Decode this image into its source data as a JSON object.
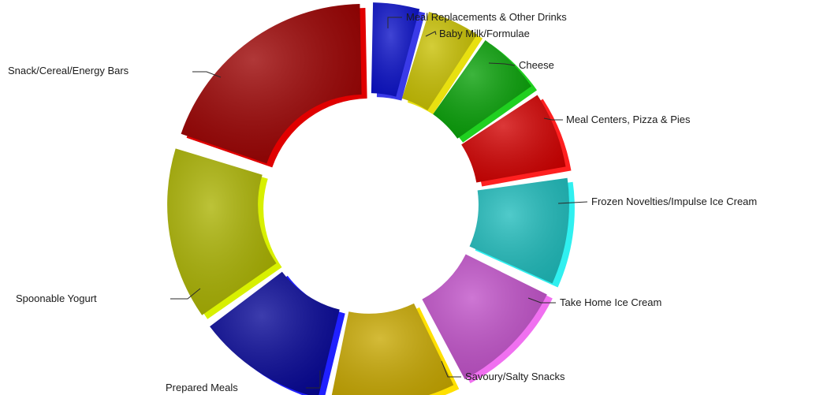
{
  "chart_data": {
    "type": "pie",
    "variant": "exploded-donut-3d",
    "categories": [
      "Meal Replacements & Other Drinks",
      "Baby Milk/Formulae",
      "Cheese",
      "Meal Centers, Pizza &  Pies",
      "Frozen Novelties/Impulse Ice Cream",
      "Take Home Ice Cream",
      "Savoury/Salty Snacks",
      "Prepared Meals",
      "Spoonable Yogurt",
      "Snack/Cereal/Energy Bars"
    ],
    "values": [
      4.5,
      5.0,
      6.0,
      7.0,
      9.5,
      10.5,
      11.0,
      11.5,
      15.0,
      20.0
    ],
    "colors": [
      "#0a10c8",
      "#c8c000",
      "#06a006",
      "#d20000",
      "#1fbcbc",
      "#c050c8",
      "#c8a800",
      "#060696",
      "#aab200",
      "#9a0000"
    ],
    "side_colors": [
      "#3a3ae8",
      "#e8e010",
      "#20d020",
      "#ff2020",
      "#30f0f0",
      "#f070f0",
      "#ffe000",
      "#2020ff",
      "#d8f000",
      "#e00000"
    ],
    "legend": "none",
    "title": "",
    "labels": [
      "Meal Replacements & Other Drinks",
      "Baby Milk/Formulae",
      "Cheese",
      "Meal Centers, Pizza &  Pies",
      "Frozen Novelties/Impulse Ice Cream",
      "Take Home Ice Cream",
      "Savoury/Salty Snacks",
      "Prepared Meals",
      "Spoonable Yogurt",
      "Snack/Cereal/Energy Bars"
    ]
  }
}
